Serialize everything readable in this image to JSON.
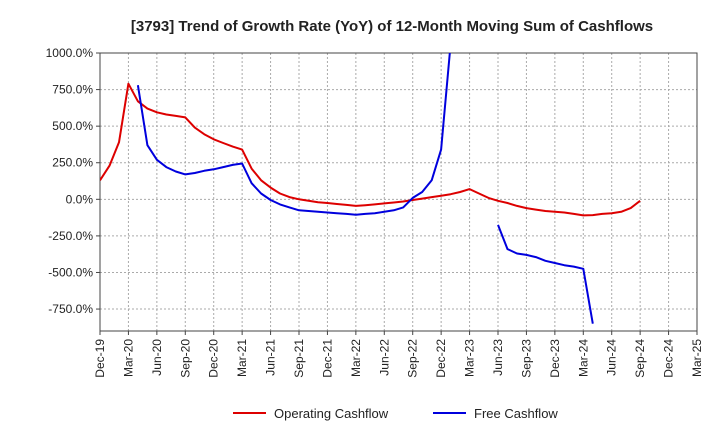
{
  "chart_data": {
    "type": "line",
    "title": "[3793]  Trend of Growth Rate (YoY) of 12-Month Moving Sum of Cashflows",
    "xlabel": "",
    "ylabel": "",
    "ylim": [
      -900,
      1000
    ],
    "yticks": [
      1000,
      750,
      500,
      250,
      0,
      -250,
      -500,
      -750
    ],
    "ytick_labels": [
      "1000.0%",
      "750.0%",
      "500.0%",
      "250.0%",
      "0.0%",
      "-250.0%",
      "-500.0%",
      "-750.0%"
    ],
    "xticks": [
      "Dec-19",
      "Mar-20",
      "Jun-20",
      "Sep-20",
      "Dec-20",
      "Mar-21",
      "Jun-21",
      "Sep-21",
      "Dec-21",
      "Mar-22",
      "Jun-22",
      "Sep-22",
      "Dec-22",
      "Mar-23",
      "Jun-23",
      "Sep-23",
      "Dec-23",
      "Mar-24",
      "Jun-24",
      "Sep-24",
      "Dec-24",
      "Mar-25"
    ],
    "grid": true,
    "legend_position": "bottom",
    "series": [
      {
        "name": "Operating Cashflow",
        "color": "#dd0000",
        "points": [
          [
            "Dec-19",
            130
          ],
          [
            "Jan-20",
            230
          ],
          [
            "Feb-20",
            390
          ],
          [
            "Mar-20",
            790
          ],
          [
            "Apr-20",
            670
          ],
          [
            "May-20",
            620
          ],
          [
            "Jun-20",
            595
          ],
          [
            "Jul-20",
            580
          ],
          [
            "Aug-20",
            570
          ],
          [
            "Sep-20",
            560
          ],
          [
            "Oct-20",
            490
          ],
          [
            "Nov-20",
            445
          ],
          [
            "Dec-20",
            410
          ],
          [
            "Jan-21",
            385
          ],
          [
            "Feb-21",
            360
          ],
          [
            "Mar-21",
            340
          ],
          [
            "Apr-21",
            210
          ],
          [
            "May-21",
            130
          ],
          [
            "Jun-21",
            80
          ],
          [
            "Jul-21",
            40
          ],
          [
            "Aug-21",
            15
          ],
          [
            "Sep-21",
            0
          ],
          [
            "Oct-21",
            -10
          ],
          [
            "Nov-21",
            -20
          ],
          [
            "Dec-21",
            -25
          ],
          [
            "Jan-22",
            -32
          ],
          [
            "Feb-22",
            -38
          ],
          [
            "Mar-22",
            -45
          ],
          [
            "Apr-22",
            -40
          ],
          [
            "May-22",
            -35
          ],
          [
            "Jun-22",
            -28
          ],
          [
            "Jul-22",
            -22
          ],
          [
            "Aug-22",
            -15
          ],
          [
            "Sep-22",
            -5
          ],
          [
            "Oct-22",
            5
          ],
          [
            "Nov-22",
            15
          ],
          [
            "Dec-22",
            25
          ],
          [
            "Jan-23",
            35
          ],
          [
            "Feb-23",
            50
          ],
          [
            "Mar-23",
            70
          ],
          [
            "Apr-23",
            40
          ],
          [
            "May-23",
            10
          ],
          [
            "Jun-23",
            -10
          ],
          [
            "Jul-23",
            -25
          ],
          [
            "Aug-23",
            -45
          ],
          [
            "Sep-23",
            -60
          ],
          [
            "Oct-23",
            -70
          ],
          [
            "Nov-23",
            -80
          ],
          [
            "Dec-23",
            -85
          ],
          [
            "Jan-24",
            -90
          ],
          [
            "Feb-24",
            -100
          ],
          [
            "Mar-24",
            -110
          ],
          [
            "Apr-24",
            -108
          ],
          [
            "May-24",
            -100
          ],
          [
            "Jun-24",
            -95
          ],
          [
            "Jul-24",
            -85
          ],
          [
            "Aug-24",
            -60
          ],
          [
            "Sep-24",
            -10
          ]
        ]
      },
      {
        "name": "Free Cashflow",
        "color": "#0000dd",
        "points": [
          [
            "Apr-20",
            780
          ],
          [
            "May-20",
            370
          ],
          [
            "Jun-20",
            270
          ],
          [
            "Jul-20",
            220
          ],
          [
            "Aug-20",
            190
          ],
          [
            "Sep-20",
            170
          ],
          [
            "Oct-20",
            180
          ],
          [
            "Nov-20",
            195
          ],
          [
            "Dec-20",
            205
          ],
          [
            "Jan-21",
            220
          ],
          [
            "Feb-21",
            235
          ],
          [
            "Mar-21",
            245
          ],
          [
            "Apr-21",
            110
          ],
          [
            "May-21",
            40
          ],
          [
            "Jun-21",
            -5
          ],
          [
            "Jul-21",
            -35
          ],
          [
            "Aug-21",
            -55
          ],
          [
            "Sep-21",
            -75
          ],
          [
            "Oct-21",
            -80
          ],
          [
            "Nov-21",
            -85
          ],
          [
            "Dec-21",
            -90
          ],
          [
            "Jan-22",
            -95
          ],
          [
            "Feb-22",
            -100
          ],
          [
            "Mar-22",
            -105
          ],
          [
            "Apr-22",
            -100
          ],
          [
            "May-22",
            -95
          ],
          [
            "Jun-22",
            -85
          ],
          [
            "Jul-22",
            -75
          ],
          [
            "Aug-22",
            -55
          ],
          [
            "Sep-22",
            10
          ],
          [
            "Oct-22",
            50
          ],
          [
            "Nov-22",
            130
          ],
          [
            "Dec-22",
            340
          ],
          [
            "Jan-23",
            1060
          ],
          null,
          [
            "Jun-23",
            -175
          ],
          [
            "Jul-23",
            -340
          ],
          [
            "Aug-23",
            -370
          ],
          [
            "Sep-23",
            -380
          ],
          [
            "Oct-23",
            -395
          ],
          [
            "Nov-23",
            -420
          ],
          [
            "Dec-23",
            -435
          ],
          [
            "Jan-24",
            -450
          ],
          [
            "Feb-24",
            -460
          ],
          [
            "Mar-24",
            -475
          ],
          [
            "Apr-24",
            -850
          ]
        ]
      }
    ]
  }
}
